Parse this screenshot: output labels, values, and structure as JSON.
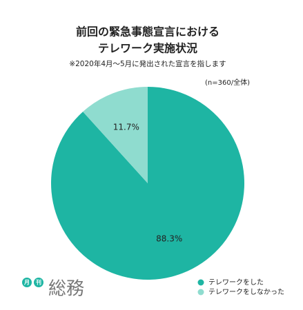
{
  "chart_data": {
    "type": "pie",
    "title": [
      "前回の緊急事態宣言における",
      "テレワーク実施状況"
    ],
    "subtitle": "※2020年4月〜5月に発出された宣言を指します",
    "note": "(n=360/全体)",
    "categories": [
      "テレワークをした",
      "テレワークをしなかった"
    ],
    "values": [
      88.3,
      11.7
    ],
    "value_labels": [
      "88.3%",
      "11.7%"
    ],
    "colors": [
      "#1eb5a3",
      "#8fdccf"
    ],
    "legend": "bottom-right"
  },
  "logo": {
    "badges": [
      "月",
      "刊"
    ],
    "name": "総務"
  }
}
